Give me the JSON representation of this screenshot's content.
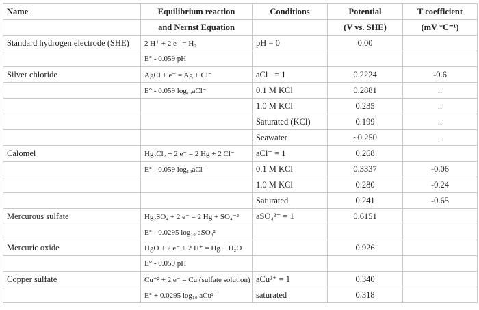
{
  "table": {
    "header": [
      [
        "Name",
        "Equilibrium reaction",
        "Conditions",
        "Potential",
        "T coefficient"
      ],
      [
        null,
        "and Nernst Equation",
        null,
        "(V vs. SHE)",
        "(mV °C⁻¹)"
      ]
    ],
    "rows": [
      [
        "Standard hydrogen electrode (SHE)",
        "2 H⁺ + 2 e⁻ = H₂",
        "pH = 0",
        "0.00",
        null
      ],
      [
        null,
        "E° - 0.059 pH",
        null,
        null,
        null
      ],
      [
        "Silver chloride",
        "AgCl + e⁻ = Ag + Cl⁻",
        "aCl⁻ = 1",
        "0.2224",
        "-0.6"
      ],
      [
        null,
        "E° - 0.059 log₁₀aCl⁻",
        "0.1 M KCl",
        "0.2881",
        ".."
      ],
      [
        null,
        null,
        "1.0 M KCl",
        "0.235",
        ".."
      ],
      [
        null,
        null,
        "Saturated (KCl)",
        "0.199",
        ".."
      ],
      [
        null,
        null,
        "Seawater",
        "~0.250",
        ".."
      ],
      [
        "Calomel",
        "Hg₂Cl₂ + 2 e⁻ = 2 Hg + 2 Cl⁻",
        "aCl⁻ = 1",
        "0.268",
        null
      ],
      [
        null,
        "E° - 0.059 log₁₀aCl⁻",
        "0.1 M KCl",
        "0.3337",
        "-0.06"
      ],
      [
        null,
        null,
        "1.0 M KCl",
        "0.280",
        "-0.24"
      ],
      [
        null,
        null,
        "Saturated",
        "0.241",
        "-0.65"
      ],
      [
        "Mercurous sulfate",
        "Hg₂SO₄ + 2 e⁻ = 2 Hg + SO₄⁻²",
        "aSO₄²⁻ = 1",
        "0.6151",
        null
      ],
      [
        null,
        "E° - 0.0295 log₁₀ aSO₄²⁻",
        null,
        null,
        null
      ],
      [
        "Mercuric oxide",
        "HgO + 2 e⁻ + 2 H⁺ = Hg + H₂O",
        null,
        "0.926",
        null
      ],
      [
        null,
        "E° - 0.059 pH",
        null,
        null,
        null
      ],
      [
        "Copper sulfate",
        "Cu⁺² + 2 e⁻ = Cu (sulfate solution)",
        "aCu²⁺ = 1",
        "0.340",
        null
      ],
      [
        null,
        "E° + 0.0295 log₁₀ aCu²⁺",
        "saturated",
        "0.318",
        null
      ]
    ]
  }
}
